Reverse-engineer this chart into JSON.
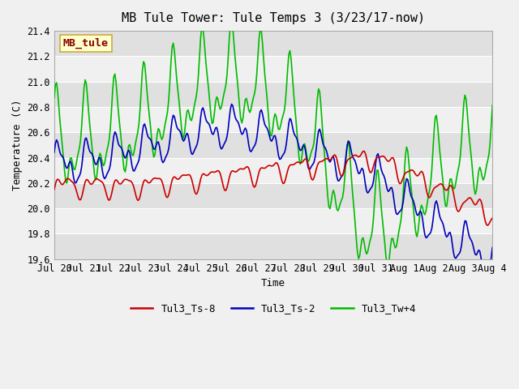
{
  "title": "MB Tule Tower: Tule Temps 3 (3/23/17-now)",
  "xlabel": "Time",
  "ylabel": "Temperature (C)",
  "ylim": [
    19.6,
    21.4
  ],
  "yticks": [
    19.6,
    19.8,
    20.0,
    20.2,
    20.4,
    20.6,
    20.8,
    21.0,
    21.2,
    21.4
  ],
  "x_labels": [
    "Jul 20",
    "Jul 21",
    "Jul 22",
    "Jul 23",
    "Jul 24",
    "Jul 25",
    "Jul 26",
    "Jul 27",
    "Jul 28",
    "Jul 29",
    "Jul 30",
    "Jul 31",
    "Aug 1",
    "Aug 2",
    "Aug 3",
    "Aug 4"
  ],
  "legend_labels": [
    "Tul3_Ts-8",
    "Tul3_Ts-2",
    "Tul3_Tw+4"
  ],
  "legend_colors": [
    "#cc0000",
    "#0000bb",
    "#00bb00"
  ],
  "watermark_text": "MB_tule",
  "watermark_bg": "#ffffcc",
  "watermark_border": "#ccaa44",
  "watermark_text_color": "#880000",
  "fig_facecolor": "#f0f0f0",
  "band_light": "#f0f0f0",
  "band_dark": "#e0e0e0",
  "grid_line_color": "#d0d0d0",
  "line_colors": [
    "#cc0000",
    "#0000bb",
    "#00bb00"
  ],
  "line_width": 1.2,
  "title_fontsize": 11,
  "axis_fontsize": 9,
  "tick_fontsize": 8.5
}
